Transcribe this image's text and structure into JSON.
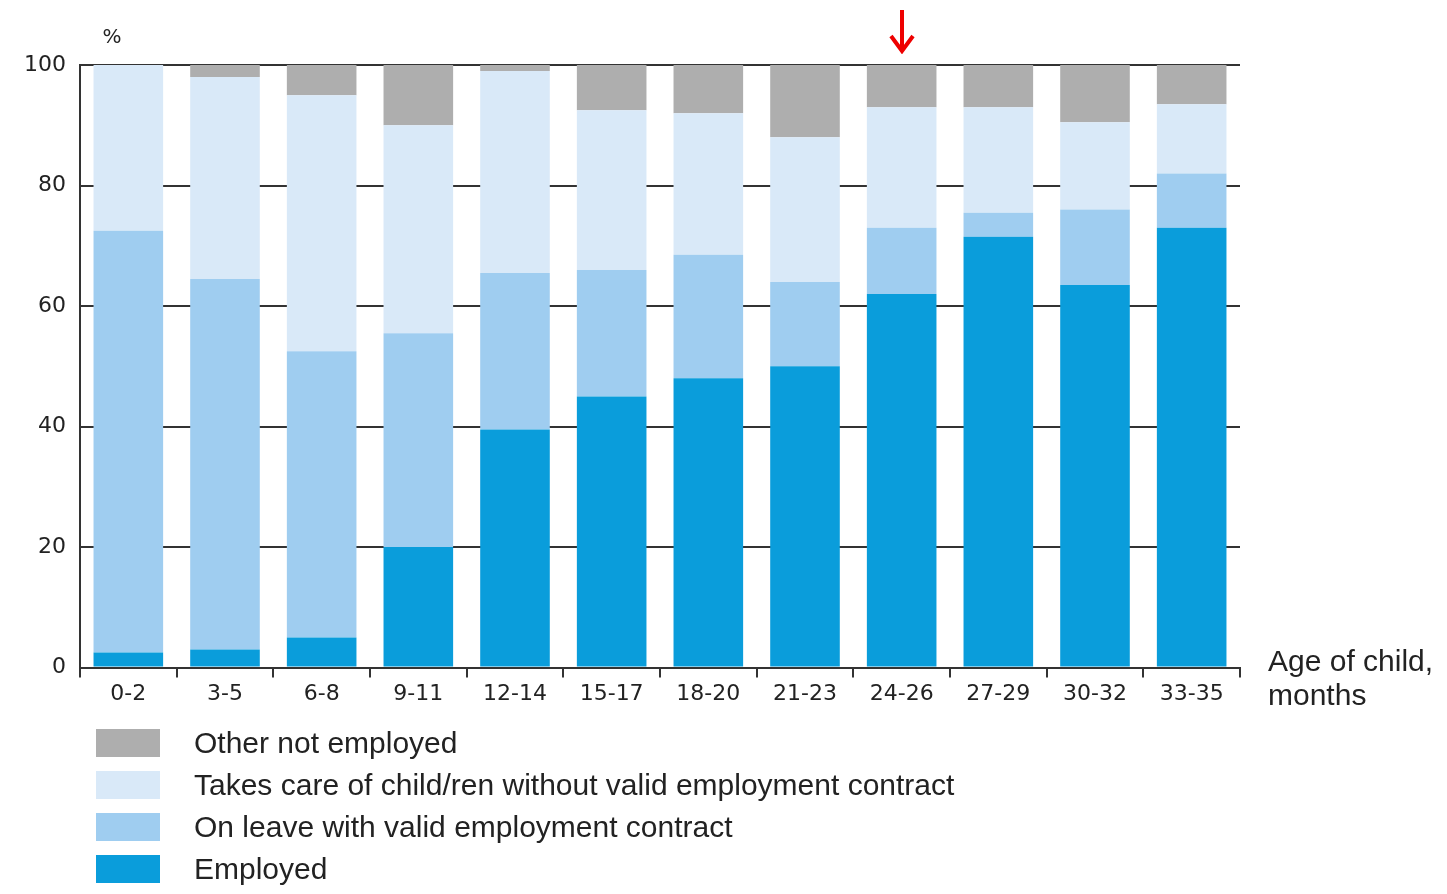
{
  "chart_data": {
    "type": "bar",
    "stacked": true,
    "ylabel": "%",
    "xlabel": "Age of child, months",
    "categories": [
      "0-2",
      "3-5",
      "6-8",
      "9-11",
      "12-14",
      "15-17",
      "18-20",
      "21-23",
      "24-26",
      "27-29",
      "30-32",
      "33-35"
    ],
    "series": [
      {
        "name": "Employed",
        "color": "#0a9ddb",
        "values": [
          2.5,
          3,
          5,
          20,
          39.5,
          45,
          48,
          50,
          62,
          71.5,
          63.5,
          73
        ]
      },
      {
        "name": "On leave with valid employment contract",
        "color": "#9fcdf0",
        "values": [
          70,
          61.5,
          47.5,
          35.5,
          26,
          21,
          20.5,
          14,
          11,
          4,
          12.5,
          9
        ]
      },
      {
        "name": "Takes care of child/ren without valid employment contract",
        "color": "#d9e9f8",
        "values": [
          27.5,
          33.5,
          42.5,
          34.5,
          33.5,
          26.5,
          23.5,
          24,
          20,
          17.5,
          14.5,
          11.5
        ]
      },
      {
        "name": "Other not employed",
        "color": "#aeaeae",
        "values": [
          0,
          2,
          5,
          10,
          1,
          7.5,
          8,
          12,
          7,
          7,
          9.5,
          6.5
        ]
      }
    ],
    "ylim": [
      0,
      100
    ],
    "yticks": [
      0,
      20,
      40,
      60,
      80,
      100
    ],
    "grid": "y",
    "legend": "bottom left"
  }
}
